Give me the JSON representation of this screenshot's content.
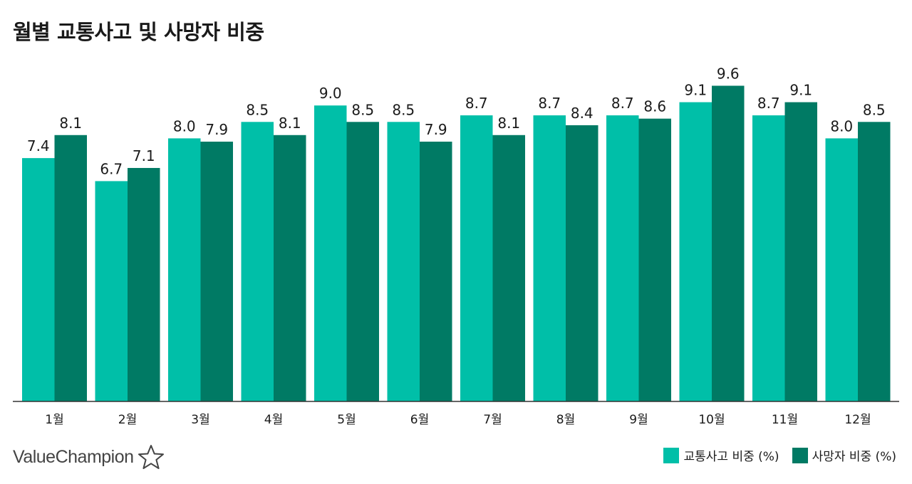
{
  "chart_data": {
    "type": "bar",
    "title": "월별 교통사고 및 사망자 비중",
    "categories": [
      "1월",
      "2월",
      "3월",
      "4월",
      "5월",
      "6월",
      "7월",
      "8월",
      "9월",
      "10월",
      "11월",
      "12월"
    ],
    "series": [
      {
        "name": "교통사고 비중 (%)",
        "color": "#00bfa8",
        "values": [
          7.4,
          6.7,
          8.0,
          8.5,
          9.0,
          8.5,
          8.7,
          8.7,
          8.7,
          9.1,
          8.7,
          8.0
        ]
      },
      {
        "name": "사망자 비중 (%)",
        "color": "#007a64",
        "values": [
          8.1,
          7.1,
          7.9,
          8.1,
          8.5,
          7.9,
          8.1,
          8.4,
          8.6,
          9.6,
          9.1,
          8.5
        ]
      }
    ],
    "ylim": [
      0,
      10
    ],
    "grid": false,
    "legend_position": "bottom-right",
    "value_labels": [
      "7.4",
      "8.1",
      "6.7",
      "7.1",
      "8.0",
      "7.9",
      "8.5",
      "8.1",
      "9.0",
      "8.5",
      "8.5",
      "7.9",
      "8.7",
      "8.1",
      "8.7",
      "8.4",
      "8.7",
      "8.6",
      "9.1",
      "9.6",
      "8.7",
      "9.1",
      "8.0",
      "8.5"
    ]
  },
  "brand": {
    "name": "ValueChampion",
    "icon": "star-outline-icon"
  }
}
